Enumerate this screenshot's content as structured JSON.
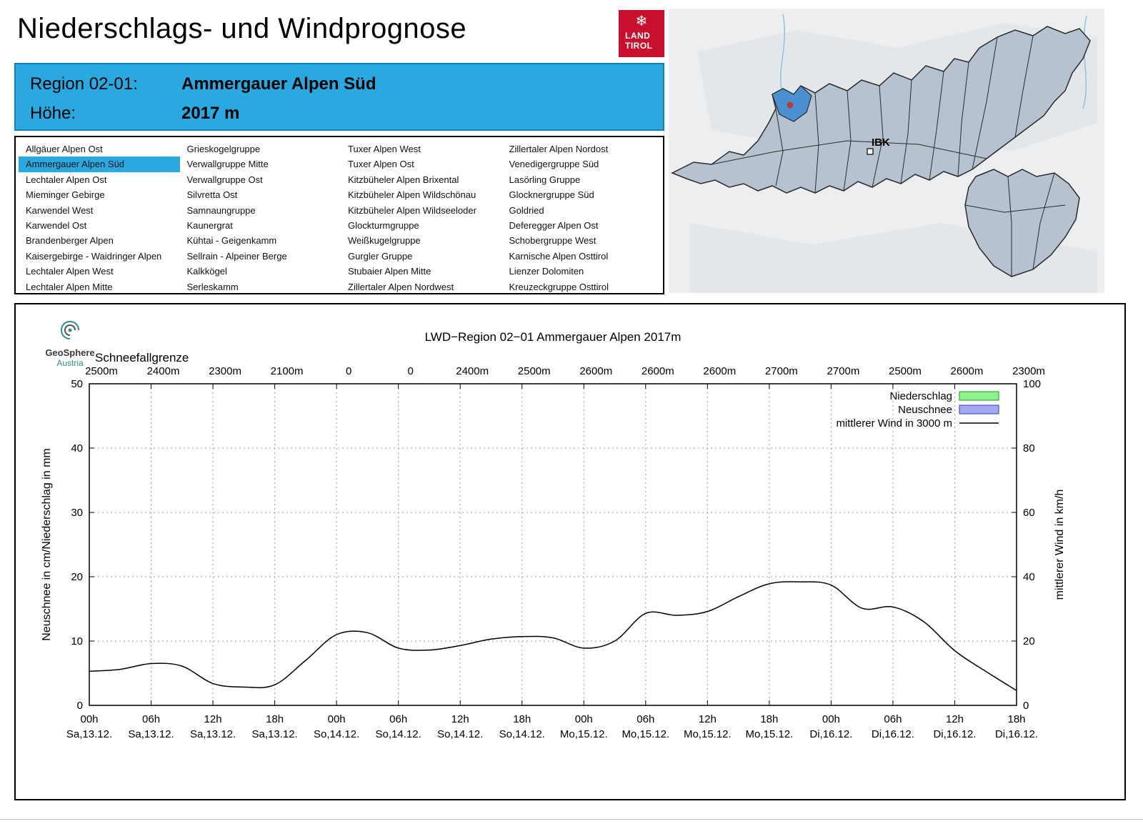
{
  "header": {
    "title": "Niederschlags- und Windprognose",
    "logo_line1": "LAND",
    "logo_line2": "TIROL",
    "logo_color": "#c8102e",
    "snowflake_icon": "❄"
  },
  "region_info": {
    "region_label": "Region 02-01:",
    "region_value": "Ammergauer Alpen Süd",
    "hoehe_label": "Höhe:",
    "hoehe_value": "2017 m",
    "accent_color": "#29a9e0"
  },
  "region_list": {
    "selected": "Ammergauer Alpen Süd",
    "columns": [
      [
        "Allgäuer Alpen Ost",
        "Ammergauer Alpen Süd",
        "Lechtaler Alpen Ost",
        "Mieminger Gebirge",
        "Karwendel West",
        "Karwendel Ost",
        "Brandenberger Alpen",
        "Kaisergebirge - Waidringer Alpen",
        "Lechtaler Alpen West",
        "Lechtaler Alpen Mitte"
      ],
      [
        "Grieskogelgruppe",
        "Verwallgruppe Mitte",
        "Verwallgruppe Ost",
        "Silvretta Ost",
        "Samnaungruppe",
        "Kaunergrat",
        "Kühtai - Geigenkamm",
        "Sellrain - Alpeiner Berge",
        "Kalkkögel",
        "Serleskamm"
      ],
      [
        "Tuxer Alpen West",
        "Tuxer Alpen Ost",
        "Kitzbüheler Alpen Brixental",
        "Kitzbüheler Alpen Wildschönau",
        "Kitzbüheler Alpen Wildseeloder",
        "Glockturmgruppe",
        "Weißkugelgruppe",
        "Gurgler Gruppe",
        "Stubaier Alpen Mitte",
        "Zillertaler Alpen Nordwest"
      ],
      [
        "Zillertaler Alpen Nordost",
        "Venedigergruppe Süd",
        "Lasörling Gruppe",
        "Glocknergruppe Süd",
        "Goldried",
        "Deferegger Alpen Ost",
        "Schobergruppe West",
        "Karnische Alpen Osttirol",
        "Lienzer Dolomiten",
        "Kreuzeckgruppe Osttirol"
      ]
    ]
  },
  "map": {
    "city_label": "IBK",
    "highlight_color": "#4a90d2",
    "marker_color": "#c0392b"
  },
  "geosphere": {
    "line1": "GeoSphere",
    "line2": "Austria"
  },
  "chart_data": {
    "type": "line",
    "title": "LWD−Region 02−01 Ammergauer Alpen 2017m",
    "snowline_label": "Schneefallgrenze",
    "snowline_values": [
      "2500m",
      "2400m",
      "2300m",
      "2100m",
      "0",
      "0",
      "2400m",
      "2500m",
      "2600m",
      "2600m",
      "2600m",
      "2700m",
      "2700m",
      "2500m",
      "2600m",
      "2300m"
    ],
    "x_tick_hours": [
      "00h",
      "06h",
      "12h",
      "18h",
      "00h",
      "06h",
      "12h",
      "18h",
      "00h",
      "06h",
      "12h",
      "18h",
      "00h",
      "06h",
      "12h",
      "18h"
    ],
    "x_tick_days": [
      "Sa,13.12.",
      "Sa,13.12.",
      "Sa,13.12.",
      "Sa,13.12.",
      "So,14.12.",
      "So,14.12.",
      "So,14.12.",
      "So,14.12.",
      "Mo,15.12.",
      "Mo,15.12.",
      "Mo,15.12.",
      "Mo,15.12.",
      "Di,16.12.",
      "Di,16.12.",
      "Di,16.12.",
      "Di,16.12."
    ],
    "ylabel_left": "Neuschnee in cm/Niederschlag in mm",
    "ylabel_right": "mittlerer Wind in km/h",
    "ylim_left": [
      0,
      50
    ],
    "ylim_right": [
      0,
      100
    ],
    "y_ticks_left": [
      0,
      10,
      20,
      30,
      40,
      50
    ],
    "y_ticks_right": [
      0,
      20,
      40,
      60,
      80,
      100
    ],
    "grid": true,
    "legend_position": "top-right",
    "legend": [
      {
        "label": "Niederschlag",
        "type": "box",
        "color": "#8df28d",
        "border": "#18a018"
      },
      {
        "label": "Neuschnee",
        "type": "box",
        "color": "#a3a8ef",
        "border": "#3b3bc8"
      },
      {
        "label": "mittlerer Wind in 3000 m",
        "type": "line",
        "color": "#000000"
      }
    ],
    "series": [
      {
        "name": "Niederschlag",
        "unit": "mm",
        "type": "bars",
        "values": [],
        "note": "no precipitation bars visible (all zero)"
      },
      {
        "name": "Neuschnee",
        "unit": "cm",
        "type": "bars",
        "values": [],
        "note": "no new-snow bars visible (all zero)"
      },
      {
        "name": "mittlerer Wind in 3000 m",
        "unit": "km/h",
        "type": "line",
        "x_hours": [
          0,
          3,
          6,
          9,
          12,
          15,
          18,
          21,
          24,
          27,
          30,
          33,
          36,
          39,
          42,
          45,
          48,
          51,
          54,
          57,
          60,
          63,
          66,
          69,
          72,
          75,
          78,
          81,
          84,
          87,
          90
        ],
        "values_kmh": [
          10.6,
          11.2,
          13.0,
          12.2,
          6.8,
          5.7,
          6.4,
          14.0,
          22.0,
          22.6,
          17.8,
          17.2,
          18.6,
          20.6,
          21.4,
          21.0,
          17.8,
          20.0,
          28.6,
          28.0,
          29.2,
          33.8,
          37.8,
          38.4,
          37.4,
          30.2,
          30.6,
          26.0,
          17.0,
          10.6,
          4.6
        ]
      }
    ]
  }
}
